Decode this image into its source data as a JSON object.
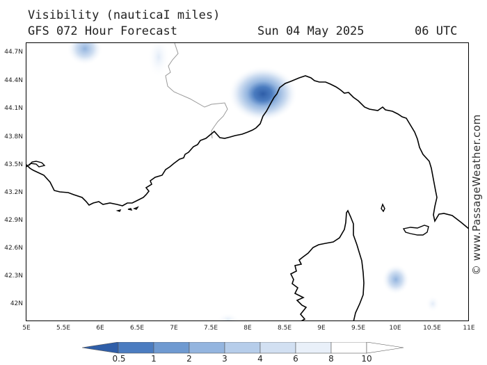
{
  "header": {
    "title": "Visibility (nauticaI miles)",
    "subtitle": "GFS 072 Hour Forecast",
    "date": "Sun 04 May 2025",
    "time": "06 UTC"
  },
  "watermark": "© www.PassageWeather.com",
  "map": {
    "lon_range": [
      5,
      11
    ],
    "lat_range": [
      41.75,
      44.85
    ],
    "x_tick_labels": [
      "5E",
      "5.5E",
      "6E",
      "6.5E",
      "7E",
      "7.5E",
      "8E",
      "8.5E",
      "9E",
      "9.5E",
      "10E",
      "10.5E",
      "11E"
    ],
    "y_tick_labels": [
      "44.7N",
      "44.4N",
      "44.1N",
      "43.8N",
      "43.5N",
      "43.2N",
      "42.9N",
      "42.6N",
      "42.3N",
      "42N"
    ],
    "land_color": "#ffffff",
    "coast_color": "#000000",
    "border_color": "#999999"
  },
  "legend": {
    "labels": [
      "0.5",
      "1",
      "2",
      "3",
      "4",
      "6",
      "8",
      "10"
    ],
    "colors": [
      "#2f5ea8",
      "#4b7cc0",
      "#6f9ad1",
      "#94b5df",
      "#b6cdea",
      "#d2e0f2",
      "#e9f0f9",
      "#ffffff"
    ]
  }
}
